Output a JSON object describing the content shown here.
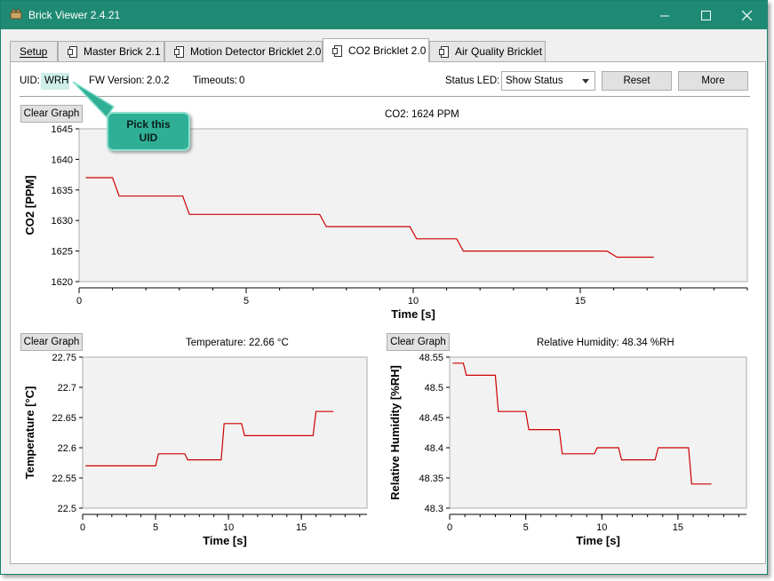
{
  "window": {
    "title": "Brick Viewer 2.4.21",
    "accent_color": "#1f8a73",
    "controls": {
      "minimize_icon": "minimize-icon",
      "maximize_icon": "maximize-icon",
      "close_icon": "close-icon"
    }
  },
  "tabs": [
    {
      "label": "Setup",
      "active": false,
      "icon": ""
    },
    {
      "label": "Master Brick 2.1",
      "active": false,
      "icon": "brick-icon"
    },
    {
      "label": "Motion Detector Bricklet 2.0",
      "active": false,
      "icon": "bricklet-icon"
    },
    {
      "label": "CO2 Bricklet 2.0",
      "active": true,
      "icon": "bricklet-icon"
    },
    {
      "label": "Air Quality Bricklet",
      "active": false,
      "icon": "bricklet-icon"
    }
  ],
  "info": {
    "uid_label": "UID:",
    "uid_value": "WRH",
    "fw_label": "FW Version:",
    "fw_value": "2.0.2",
    "timeouts_label": "Timeouts:",
    "timeouts_value": "0",
    "status_led_label": "Status LED:",
    "status_led_value": "Show Status",
    "reset_label": "Reset",
    "more_label": "More"
  },
  "callout": {
    "text_line1": "Pick this",
    "text_line2": "UID"
  },
  "plots": {
    "co2": {
      "clear_label": "Clear Graph",
      "status_text": "CO2: 1624 PPM"
    },
    "temperature": {
      "clear_label": "Clear Graph",
      "status_text": "Temperature: 22.66 °C"
    },
    "humidity": {
      "clear_label": "Clear Graph",
      "status_text": "Relative Humidity: 48.34 %RH"
    }
  },
  "chart_data": [
    {
      "type": "line",
      "xlabel": "Time [s]",
      "ylabel": "CO2 [PPM]",
      "xlim": [
        0,
        20
      ],
      "ylim": [
        1620,
        1645
      ],
      "xticks": [
        0,
        5,
        10,
        15
      ],
      "yticks": [
        1620,
        1625,
        1630,
        1635,
        1640,
        1645
      ],
      "color": "#cc0000",
      "series": [
        {
          "x": [
            0.2,
            1.0,
            1.2,
            3.1,
            3.3,
            7.2,
            7.4,
            9.9,
            10.1,
            11.3,
            11.5,
            15.8,
            16.1,
            17.2
          ],
          "y": [
            1637,
            1637,
            1634,
            1634,
            1631,
            1631,
            1629,
            1629,
            1627,
            1627,
            1625,
            1625,
            1624,
            1624
          ]
        }
      ]
    },
    {
      "type": "line",
      "xlabel": "Time [s]",
      "ylabel": "Temperature [°C]",
      "xlim": [
        0,
        19.5
      ],
      "ylim": [
        22.5,
        22.75
      ],
      "xticks": [
        0,
        5,
        10,
        15
      ],
      "yticks": [
        22.5,
        22.55,
        22.6,
        22.65,
        22.7,
        22.75
      ],
      "color": "#cc0000",
      "series": [
        {
          "x": [
            0.2,
            5.0,
            5.2,
            7.0,
            7.2,
            9.5,
            9.7,
            10.9,
            11.1,
            15.8,
            16.0,
            17.2
          ],
          "y": [
            22.57,
            22.57,
            22.59,
            22.59,
            22.58,
            22.58,
            22.64,
            22.64,
            22.62,
            22.62,
            22.66,
            22.66
          ]
        }
      ]
    },
    {
      "type": "line",
      "xlabel": "Time [s]",
      "ylabel": "Relative Humidity [%RH]",
      "xlim": [
        0,
        19.5
      ],
      "ylim": [
        48.3,
        48.55
      ],
      "xticks": [
        0,
        5,
        10,
        15
      ],
      "yticks": [
        48.3,
        48.35,
        48.4,
        48.45,
        48.5,
        48.55
      ],
      "color": "#cc0000",
      "series": [
        {
          "x": [
            0.2,
            0.9,
            1.1,
            3.0,
            3.2,
            5.0,
            5.2,
            7.2,
            7.4,
            9.5,
            9.7,
            11.1,
            11.3,
            13.5,
            13.7,
            15.7,
            15.9,
            17.2
          ],
          "y": [
            48.54,
            48.54,
            48.52,
            48.52,
            48.46,
            48.46,
            48.43,
            48.43,
            48.39,
            48.39,
            48.4,
            48.4,
            48.38,
            48.38,
            48.4,
            48.4,
            48.34,
            48.34
          ]
        }
      ]
    }
  ]
}
